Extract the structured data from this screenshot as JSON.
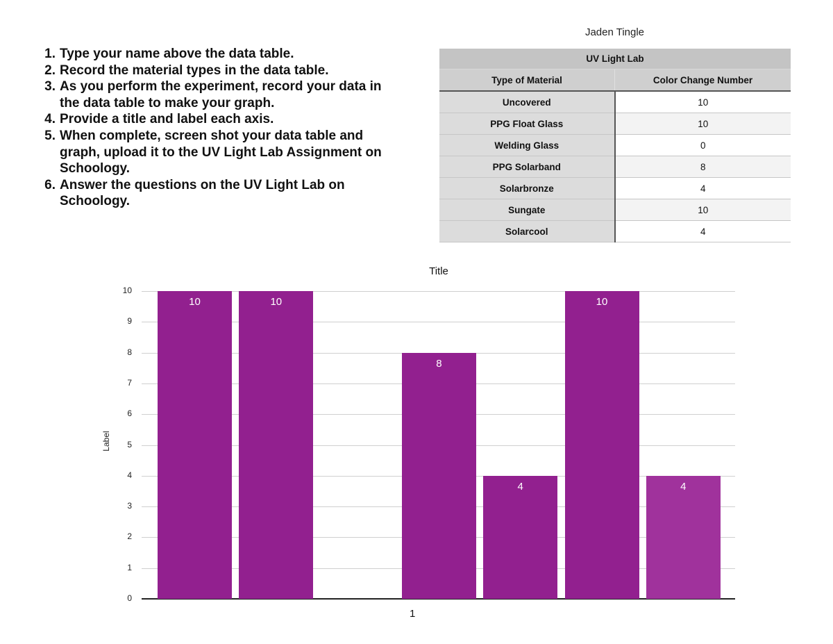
{
  "instructions": [
    {
      "num": "1.",
      "text": "Type your name above the data table."
    },
    {
      "num": "2.",
      "text": "Record the material types in the data table."
    },
    {
      "num": "3.",
      "text": "As you perform the experiment, record your data in the data table to make your graph."
    },
    {
      "num": "4.",
      "text": "Provide a title and label each axis."
    },
    {
      "num": "5.",
      "text": "When complete, screen shot your data table and graph, upload it to the UV Light Lab Assignment on Schoology."
    },
    {
      "num": "6.",
      "text": "Answer the questions on the UV Light Lab on Schoology."
    }
  ],
  "student_name": "Jaden Tingle",
  "table": {
    "title": "UV Light Lab",
    "headers": [
      "Type of Material",
      "Color Change Number"
    ],
    "rows": [
      {
        "material": "Uncovered",
        "value": "10"
      },
      {
        "material": "PPG Float Glass",
        "value": "10"
      },
      {
        "material": "Welding Glass",
        "value": "0"
      },
      {
        "material": "PPG Solarband",
        "value": "8"
      },
      {
        "material": "Solarbronze",
        "value": "4"
      },
      {
        "material": "Sungate",
        "value": "10"
      },
      {
        "material": "Solarcool",
        "value": "4"
      }
    ]
  },
  "colors": {
    "bar": "#92208f",
    "bar_last": "#a0329c",
    "gridline": "#cfcfcf"
  },
  "chart_data": {
    "type": "bar",
    "title": "Title",
    "xlabel": "",
    "ylabel": "Label",
    "categories": [
      "1"
    ],
    "series": [
      {
        "name": "Uncovered",
        "values": [
          10
        ]
      },
      {
        "name": "PPG Float Glass",
        "values": [
          10
        ]
      },
      {
        "name": "Welding Glass",
        "values": [
          0
        ]
      },
      {
        "name": "PPG Solarband",
        "values": [
          8
        ]
      },
      {
        "name": "Solarbronze",
        "values": [
          4
        ]
      },
      {
        "name": "Sungate",
        "values": [
          10
        ]
      },
      {
        "name": "Solarcool",
        "values": [
          4
        ]
      }
    ],
    "data_labels": [
      "10",
      "10",
      "",
      "8",
      "4",
      "10",
      "4"
    ],
    "yticks": [
      "0",
      "1",
      "2",
      "3",
      "4",
      "5",
      "6",
      "7",
      "8",
      "9",
      "10"
    ],
    "ylim": [
      0,
      10
    ],
    "grid": true,
    "legend": "none"
  }
}
